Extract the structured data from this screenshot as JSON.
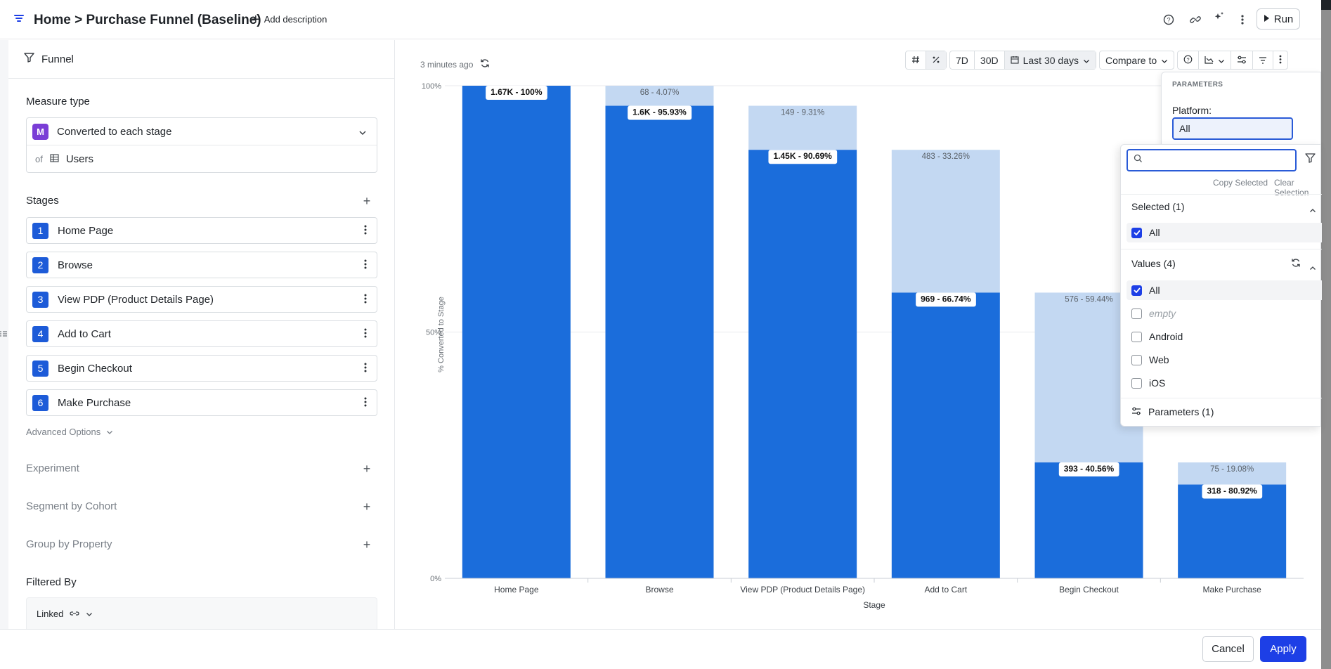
{
  "header": {
    "title": "Home > Purchase Funnel (Baseline)",
    "add_description": "Add description",
    "run_label": "Run"
  },
  "panel": {
    "name": "Funnel",
    "measure_type_title": "Measure type",
    "measure_badge": "M",
    "measure_value": "Converted to each stage",
    "of_label": "of",
    "of_value": "Users",
    "stages_title": "Stages",
    "stages": [
      {
        "num": "1",
        "label": "Home Page"
      },
      {
        "num": "2",
        "label": "Browse"
      },
      {
        "num": "3",
        "label": "View PDP (Product Details Page)"
      },
      {
        "num": "4",
        "label": "Add to Cart"
      },
      {
        "num": "5",
        "label": "Begin Checkout"
      },
      {
        "num": "6",
        "label": "Make Purchase"
      }
    ],
    "advanced_options": "Advanced Options",
    "experiment": "Experiment",
    "segment": "Segment by Cohort",
    "group_by": "Group by Property",
    "filtered_by": "Filtered By",
    "linked": "Linked"
  },
  "main": {
    "updated": "3 minutes ago",
    "toolbar": {
      "seven_day": "7D",
      "thirty_day": "30D",
      "date_range": "Last 30 days",
      "compare": "Compare to"
    }
  },
  "chart_data": {
    "type": "bar",
    "stacked": true,
    "xlabel": "Stage",
    "ylabel": "% Converted to Stage",
    "ylim": [
      0,
      100
    ],
    "y_ticks": [
      "100%",
      "50%",
      "0%"
    ],
    "categories": [
      "Home Page",
      "Browse",
      "View PDP (Product Details Page)",
      "Add to Cart",
      "Begin Checkout",
      "Make Purchase"
    ],
    "series": [
      {
        "values": [
          100,
          95.93,
          90.69,
          66.74,
          40.56,
          80.92
        ],
        "labels": [
          "1.67K - 100%",
          "1.6K - 95.93%",
          "1.45K - 90.69%",
          "969 - 66.74%",
          "393 - 40.56%",
          "318 - 80.92%"
        ]
      },
      {
        "values": [
          null,
          4.07,
          9.31,
          33.26,
          59.44,
          19.08
        ],
        "labels": [
          "",
          "68 - 4.07%",
          "149 - 9.31%",
          "483 - 33.26%",
          "576 - 59.44%",
          "75 - 19.08%"
        ]
      }
    ],
    "bar_tops_pct": [
      100,
      100,
      95.93,
      86.99,
      58.0,
      23.53
    ],
    "converted_tops_pct": [
      100,
      95.93,
      86.99,
      58.0,
      23.53,
      19.04
    ],
    "colors": {
      "converted": "#1b6ddb",
      "dropped": "#c3d8f2"
    },
    "grid": true
  },
  "params": {
    "caption": "PARAMETERS",
    "platform_label": "Platform:",
    "platform_value": "All"
  },
  "dropdown": {
    "search_placeholder": "",
    "copy_selected": "Copy Selected",
    "clear_selection": "Clear Selection",
    "selected_title": "Selected (1)",
    "selected_items": [
      {
        "label": "All",
        "checked": true
      }
    ],
    "values_title": "Values (4)",
    "values": [
      {
        "label": "All",
        "checked": true
      },
      {
        "label": "empty",
        "checked": false
      },
      {
        "label": "Android",
        "checked": false
      },
      {
        "label": "Web",
        "checked": false
      },
      {
        "label": "iOS",
        "checked": false
      }
    ],
    "parameters_link": "Parameters (1)"
  },
  "footer": {
    "cancel": "Cancel",
    "apply": "Apply"
  }
}
